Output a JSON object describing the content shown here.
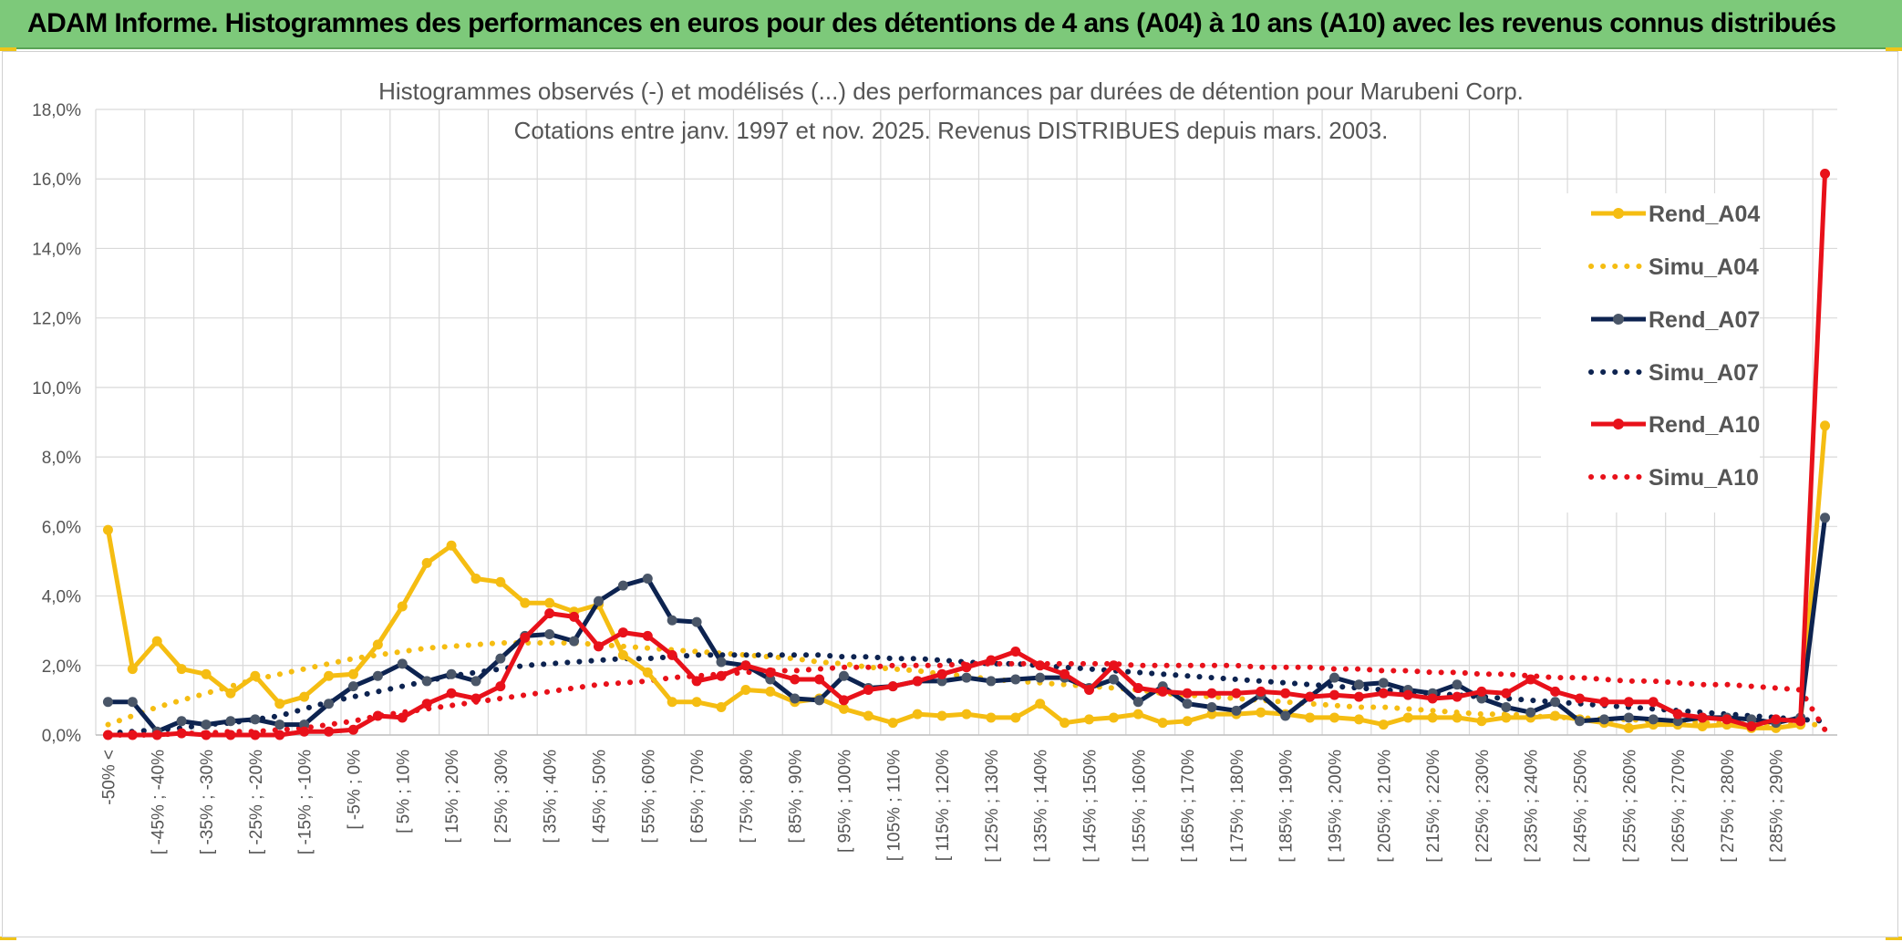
{
  "banner": {
    "title": "ADAM Informe. Histogrammes des performances en euros pour des détentions de 4 ans (A04) à 10 ans (A10) avec les revenus connus distribués"
  },
  "chart_data": {
    "type": "line",
    "title": "Histogrammes observés (-) et modélisés (...) des performances par durées de détention pour Marubeni Corp.",
    "subtitle": "Cotations entre janv. 1997 et nov. 2025. Revenus DISTRIBUES depuis mars. 2003.",
    "xlabel": "",
    "ylabel": "",
    "ylim": [
      0,
      18
    ],
    "y_ticks": [
      "0,0%",
      "2,0%",
      "4,0%",
      "6,0%",
      "8,0%",
      "10,0%",
      "12,0%",
      "14,0%",
      "16,0%",
      "18,0%"
    ],
    "x_tick_labels": [
      "-50% <",
      "[ -45% ; -40%",
      "[ -35% ; -30%",
      "[ -25% ; -20%",
      "[ -15% ; -10%",
      "[ -5% ; 0%",
      "[ 5% ; 10%",
      "[ 15% ; 20%",
      "[ 25% ; 30%",
      "[ 35% ; 40%",
      "[ 45% ; 50%",
      "[ 55% ; 60%",
      "[ 65% ; 70%",
      "[ 75% ; 80%",
      "[ 85% ; 90%",
      "[ 95% ; 100%",
      "[ 105% ; 110%",
      "[ 115% ; 120%",
      "[ 125% ; 130%",
      "[ 135% ; 140%",
      "[ 145% ; 150%",
      "[ 155% ; 160%",
      "[ 165% ; 170%",
      "[ 175% ; 180%",
      "[ 185% ; 190%",
      "[ 195% ; 200%",
      "[ 205% ; 210%",
      "[ 215% ; 220%",
      "[ 225% ; 230%",
      "[ 235% ; 240%",
      "[ 245% ; 250%",
      "[ 255% ; 260%",
      "[ 265% ; 270%",
      "[ 275% ; 280%",
      "[ 285% ; 290%"
    ],
    "n_points": 71,
    "series": [
      {
        "name": "Rend_A04",
        "style": "solid",
        "color": "#f5bd12",
        "values": [
          5.9,
          1.9,
          2.7,
          1.9,
          1.75,
          1.2,
          1.7,
          0.9,
          1.1,
          1.7,
          1.75,
          2.6,
          3.7,
          4.95,
          5.45,
          4.5,
          4.4,
          3.8,
          3.8,
          3.55,
          3.75,
          2.3,
          1.8,
          0.95,
          0.95,
          0.8,
          1.3,
          1.25,
          0.95,
          1.05,
          0.75,
          0.55,
          0.35,
          0.6,
          0.55,
          0.6,
          0.5,
          0.5,
          0.9,
          0.35,
          0.45,
          0.5,
          0.6,
          0.35,
          0.4,
          0.6,
          0.6,
          0.65,
          0.6,
          0.5,
          0.5,
          0.45,
          0.3,
          0.5,
          0.5,
          0.5,
          0.4,
          0.5,
          0.5,
          0.55,
          0.45,
          0.35,
          0.2,
          0.3,
          0.3,
          0.25,
          0.3,
          0.2,
          0.2,
          0.3,
          8.9
        ]
      },
      {
        "name": "Simu_A04",
        "style": "dotted",
        "color": "#f5bd12",
        "values": [
          0.3,
          0.55,
          0.8,
          1.0,
          1.2,
          1.4,
          1.6,
          1.75,
          1.9,
          2.05,
          2.2,
          2.3,
          2.4,
          2.5,
          2.55,
          2.6,
          2.65,
          2.65,
          2.65,
          2.65,
          2.6,
          2.55,
          2.5,
          2.45,
          2.4,
          2.35,
          2.3,
          2.25,
          2.2,
          2.1,
          2.05,
          1.95,
          1.9,
          1.85,
          1.75,
          1.7,
          1.6,
          1.55,
          1.5,
          1.45,
          1.4,
          1.35,
          1.3,
          1.2,
          1.15,
          1.1,
          1.05,
          1.0,
          0.95,
          0.9,
          0.85,
          0.8,
          0.8,
          0.75,
          0.7,
          0.65,
          0.6,
          0.6,
          0.55,
          0.5,
          0.5,
          0.45,
          0.45,
          0.4,
          0.4,
          0.35,
          0.35,
          0.3,
          0.3,
          0.3,
          0.3
        ]
      },
      {
        "name": "Rend_A07",
        "style": "solid",
        "color": "#0d2350",
        "values": [
          0.95,
          0.95,
          0.1,
          0.4,
          0.3,
          0.4,
          0.45,
          0.3,
          0.3,
          0.9,
          1.4,
          1.7,
          2.05,
          1.55,
          1.75,
          1.55,
          2.2,
          2.85,
          2.9,
          2.7,
          3.85,
          4.3,
          4.5,
          3.3,
          3.25,
          2.1,
          2.0,
          1.6,
          1.05,
          1.0,
          1.7,
          1.35,
          1.4,
          1.55,
          1.55,
          1.65,
          1.55,
          1.6,
          1.65,
          1.65,
          1.35,
          1.6,
          0.95,
          1.4,
          0.9,
          0.8,
          0.7,
          1.15,
          0.55,
          1.1,
          1.65,
          1.45,
          1.5,
          1.3,
          1.2,
          1.45,
          1.05,
          0.8,
          0.65,
          0.95,
          0.4,
          0.45,
          0.5,
          0.45,
          0.4,
          0.5,
          0.5,
          0.45,
          0.35,
          0.5,
          6.25
        ]
      },
      {
        "name": "Simu_A07",
        "style": "dotted",
        "color": "#0d2350",
        "values": [
          0.05,
          0.1,
          0.15,
          0.2,
          0.3,
          0.35,
          0.45,
          0.55,
          0.75,
          0.95,
          1.1,
          1.25,
          1.4,
          1.55,
          1.7,
          1.8,
          1.9,
          2.0,
          2.05,
          2.1,
          2.15,
          2.2,
          2.2,
          2.25,
          2.3,
          2.3,
          2.3,
          2.3,
          2.3,
          2.3,
          2.25,
          2.25,
          2.2,
          2.2,
          2.15,
          2.1,
          2.05,
          2.05,
          2.0,
          1.95,
          1.9,
          1.85,
          1.8,
          1.75,
          1.7,
          1.65,
          1.6,
          1.55,
          1.5,
          1.45,
          1.4,
          1.35,
          1.3,
          1.25,
          1.2,
          1.15,
          1.1,
          1.05,
          1.0,
          0.95,
          0.9,
          0.85,
          0.8,
          0.75,
          0.7,
          0.65,
          0.6,
          0.55,
          0.5,
          0.45,
          0.4
        ]
      },
      {
        "name": "Rend_A10",
        "style": "solid",
        "color": "#e8111a",
        "values": [
          0.0,
          0.0,
          0.0,
          0.05,
          0.0,
          0.0,
          0.0,
          0.0,
          0.1,
          0.1,
          0.15,
          0.55,
          0.5,
          0.9,
          1.2,
          1.05,
          1.4,
          2.8,
          3.5,
          3.4,
          2.55,
          2.95,
          2.85,
          2.3,
          1.55,
          1.7,
          2.0,
          1.8,
          1.6,
          1.6,
          1.0,
          1.3,
          1.4,
          1.55,
          1.75,
          1.95,
          2.15,
          2.4,
          2.0,
          1.75,
          1.3,
          2.0,
          1.35,
          1.25,
          1.2,
          1.2,
          1.2,
          1.25,
          1.2,
          1.1,
          1.15,
          1.1,
          1.2,
          1.15,
          1.05,
          1.1,
          1.25,
          1.2,
          1.6,
          1.25,
          1.05,
          0.95,
          0.95,
          0.95,
          0.6,
          0.5,
          0.45,
          0.25,
          0.45,
          0.4,
          16.15
        ]
      },
      {
        "name": "Simu_A10",
        "style": "dotted",
        "color": "#e8111a",
        "values": [
          0.0,
          0.0,
          0.0,
          0.05,
          0.05,
          0.1,
          0.1,
          0.15,
          0.2,
          0.3,
          0.4,
          0.55,
          0.65,
          0.75,
          0.85,
          0.95,
          1.05,
          1.15,
          1.25,
          1.35,
          1.45,
          1.5,
          1.55,
          1.65,
          1.7,
          1.75,
          1.8,
          1.85,
          1.85,
          1.9,
          1.95,
          1.95,
          2.0,
          2.0,
          2.0,
          2.05,
          2.05,
          2.05,
          2.05,
          2.05,
          2.05,
          2.05,
          2.0,
          2.0,
          2.0,
          2.0,
          2.0,
          1.95,
          1.95,
          1.95,
          1.9,
          1.9,
          1.85,
          1.85,
          1.8,
          1.8,
          1.75,
          1.75,
          1.7,
          1.65,
          1.65,
          1.6,
          1.55,
          1.55,
          1.5,
          1.45,
          1.45,
          1.4,
          1.35,
          1.3,
          0.15
        ]
      }
    ],
    "legend": {
      "position": "top-right",
      "entries": [
        "Rend_A04",
        "Simu_A04",
        "Rend_A07",
        "Simu_A07",
        "Rend_A10",
        "Simu_A10"
      ]
    }
  }
}
